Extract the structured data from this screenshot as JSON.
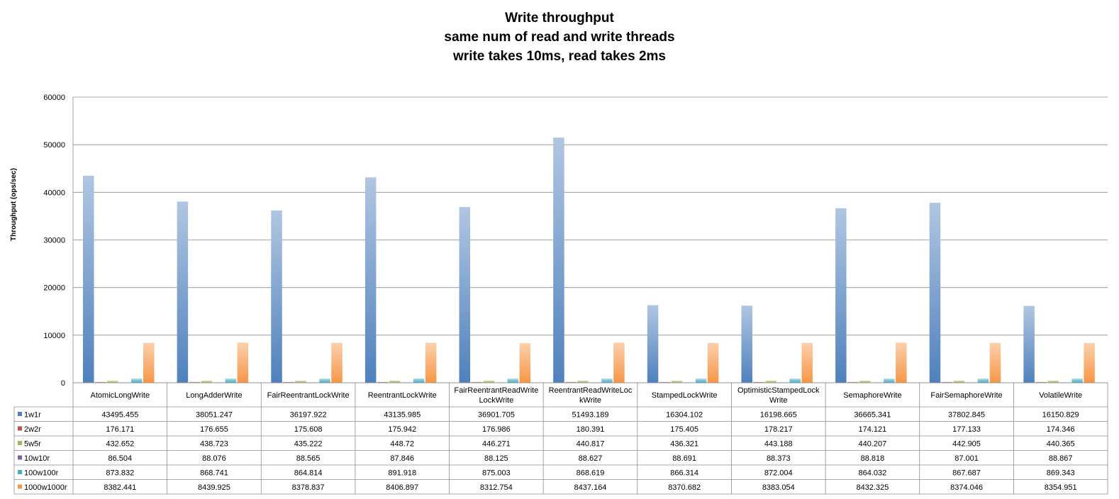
{
  "chart_data": {
    "type": "bar",
    "title": [
      "Write throughput",
      "same num of read and write threads",
      "write takes 10ms, read takes 2ms"
    ],
    "ylabel": "Throughput (ops/sec)",
    "ylim": [
      0,
      60000
    ],
    "yticks": [
      0,
      10000,
      20000,
      30000,
      40000,
      50000,
      60000
    ],
    "grid": true,
    "legend": "table-left",
    "categories": [
      "AtomicLongWrite",
      "LongAdderWrite",
      "FairReentrantLockWrite",
      "ReentrantLockWrite",
      "FairReentrantReadWriteLockWrite",
      "ReentrantReadWriteLockWrite",
      "StampedLockWrite",
      "OptimisticStampedLockWrite",
      "SemaphoreWrite",
      "FairSemaphoreWrite",
      "VolatileWrite"
    ],
    "category_lines": [
      [
        "AtomicLongWrite"
      ],
      [
        "LongAdderWrite"
      ],
      [
        "FairReentrantLockWrite"
      ],
      [
        "ReentrantLockWrite"
      ],
      [
        "FairReentrantReadWrite",
        "LockWrite"
      ],
      [
        "ReentrantReadWriteLoc",
        "kWrite"
      ],
      [
        "StampedLockWrite"
      ],
      [
        "OptimisticStampedLock",
        "Write"
      ],
      [
        "SemaphoreWrite"
      ],
      [
        "FairSemaphoreWrite"
      ],
      [
        "VolatileWrite"
      ]
    ],
    "series": [
      {
        "name": "1w1r",
        "color": "#4f81bd",
        "values": [
          43495.455,
          38051.247,
          36197.922,
          43135.985,
          36901.705,
          51493.189,
          16304.102,
          16198.665,
          36665.341,
          37802.845,
          16150.829
        ],
        "labels": [
          "43495.455",
          "38051.247",
          "36197.922",
          "43135.985",
          "36901.705",
          "51493.189",
          "16304.102",
          "16198.665",
          "36665.341",
          "37802.845",
          "16150.829"
        ]
      },
      {
        "name": "2w2r",
        "color": "#c0504d",
        "values": [
          176.171,
          176.655,
          175.608,
          175.942,
          176.986,
          180.391,
          175.405,
          178.217,
          174.121,
          177.133,
          174.346
        ],
        "labels": [
          "176.171",
          "176.655",
          "175.608",
          "175.942",
          "176.986",
          "180.391",
          "175.405",
          "178.217",
          "174.121",
          "177.133",
          "174.346"
        ]
      },
      {
        "name": "5w5r",
        "color": "#9bbb59",
        "values": [
          432.652,
          438.723,
          435.222,
          448.72,
          446.271,
          440.817,
          436.321,
          443.188,
          440.207,
          442.905,
          440.365
        ],
        "labels": [
          "432.652",
          "438.723",
          "435.222",
          "448.72",
          "446.271",
          "440.817",
          "436.321",
          "443.188",
          "440.207",
          "442.905",
          "440.365"
        ]
      },
      {
        "name": "10w10r",
        "color": "#8064a2",
        "values": [
          86.504,
          88.076,
          88.565,
          87.846,
          88.125,
          88.627,
          88.691,
          88.373,
          88.818,
          87.001,
          88.867
        ],
        "labels": [
          "86.504",
          "88.076",
          "88.565",
          "87.846",
          "88.125",
          "88.627",
          "88.691",
          "88.373",
          "88.818",
          "87.001",
          "88.867"
        ]
      },
      {
        "name": "100w100r",
        "color": "#4bacc6",
        "values": [
          873.832,
          868.741,
          864.814,
          891.918,
          875.003,
          868.619,
          866.314,
          872.004,
          864.032,
          867.687,
          869.343
        ],
        "labels": [
          "873.832",
          "868.741",
          "864.814",
          "891.918",
          "875.003",
          "868.619",
          "866.314",
          "872.004",
          "864.032",
          "867.687",
          "869.343"
        ]
      },
      {
        "name": "1000w1000r",
        "color": "#f79646",
        "values": [
          8382.441,
          8439.925,
          8378.837,
          8406.897,
          8312.754,
          8437.164,
          8370.682,
          8383.054,
          8432.325,
          8374.046,
          8354.951
        ],
        "labels": [
          "8382.441",
          "8439.925",
          "8378.837",
          "8406.897",
          "8312.754",
          "8437.164",
          "8370.682",
          "8383.054",
          "8432.325",
          "8374.046",
          "8354.951"
        ]
      }
    ]
  }
}
